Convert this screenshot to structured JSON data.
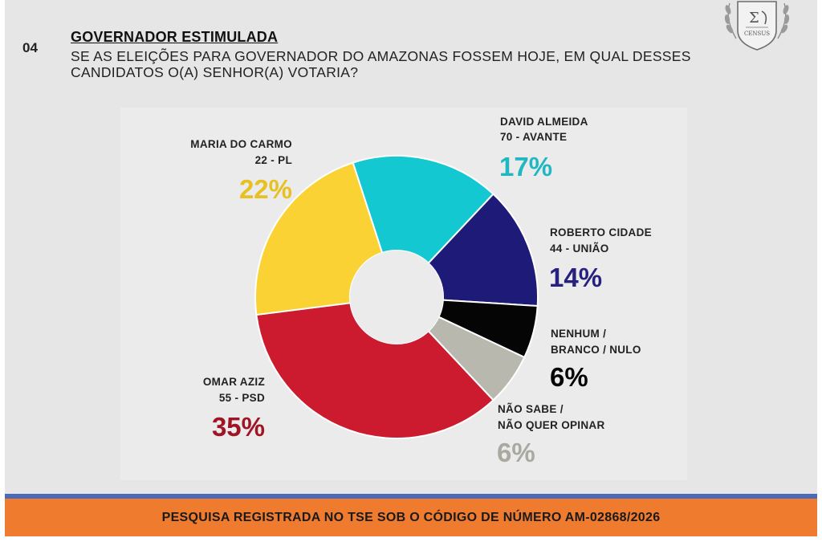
{
  "slide": {
    "number": "04",
    "title": "GOVERNADOR ESTIMULADA",
    "question": "SE AS ELEIÇÕES PARA GOVERNADOR DO AMAZONAS FOSSEM HOJE, EM QUAL DESSES CANDIDATOS O(A) SENHOR(A) VOTARIA?"
  },
  "logo": {
    "text": "CENSUS",
    "icon": "census-seal-icon"
  },
  "footer": {
    "text": "PESQUISA REGISTRADA NO TSE SOB O CÓDIGO DE NÚMERO AM-02868/2026"
  },
  "chart_data": {
    "type": "pie",
    "variant": "donut",
    "start_angle_deg": -18,
    "direction": "clockwise",
    "slices": [
      {
        "name": "DAVID ALMEIDA",
        "sub": "70 - AVANTE",
        "value": 17,
        "label": "17%",
        "color": "#14c8d2",
        "text_color": "#1fb8c2"
      },
      {
        "name": "ROBERTO CIDADE",
        "sub": "44 - UNIÃO",
        "value": 14,
        "label": "14%",
        "color": "#1e1a78",
        "text_color": "#262080"
      },
      {
        "name": "NENHUM /",
        "sub": "BRANCO / NULO",
        "value": 6,
        "label": "6%",
        "color": "#050505",
        "text_color": "#050505"
      },
      {
        "name": "NÃO SABE /",
        "sub": "NÃO QUER OPINAR",
        "value": 6,
        "label": "6%",
        "color": "#b8b8ae",
        "text_color": "#a9a9a0"
      },
      {
        "name": "OMAR AZIZ",
        "sub": "55 - PSD",
        "value": 35,
        "label": "35%",
        "color": "#cc1a2e",
        "text_color": "#a01525"
      },
      {
        "name": "MARIA DO CARMO",
        "sub": "22 - PL",
        "value": 22,
        "label": "22%",
        "color": "#fbd234",
        "text_color": "#e8c020"
      }
    ]
  }
}
